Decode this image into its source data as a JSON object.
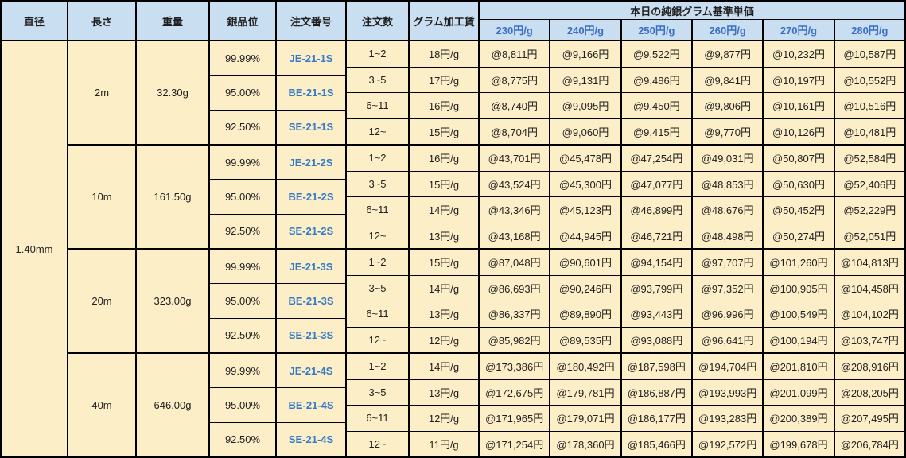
{
  "header": {
    "columns": [
      "直径",
      "長さ",
      "重量",
      "銀品位",
      "注文番号",
      "注文数",
      "グラム加工賃"
    ],
    "price_title": "本日の純銀グラム基準単価",
    "price_columns": [
      "230円/g",
      "240円/g",
      "250円/g",
      "260円/g",
      "270円/g",
      "280円/g"
    ]
  },
  "diameter": "1.40mm",
  "groups": [
    {
      "length": "2m",
      "weight": "32.30g",
      "purities": [
        {
          "purity": "99.99%",
          "order_no": "JE-21-1S"
        },
        {
          "purity": "95.00%",
          "order_no": "BE-21-1S"
        },
        {
          "purity": "92.50%",
          "order_no": "SE-21-1S"
        }
      ],
      "rows": [
        {
          "qty": "1~2",
          "fee": "18円/g",
          "prices": [
            "@8,811円",
            "@9,166円",
            "@9,522円",
            "@9,877円",
            "@10,232円",
            "@10,587円"
          ]
        },
        {
          "qty": "3~5",
          "fee": "17円/g",
          "prices": [
            "@8,775円",
            "@9,131円",
            "@9,486円",
            "@9,841円",
            "@10,197円",
            "@10,552円"
          ]
        },
        {
          "qty": "6~11",
          "fee": "16円/g",
          "prices": [
            "@8,740円",
            "@9,095円",
            "@9,450円",
            "@9,806円",
            "@10,161円",
            "@10,516円"
          ]
        },
        {
          "qty": "12~",
          "fee": "15円/g",
          "prices": [
            "@8,704円",
            "@9,060円",
            "@9,415円",
            "@9,770円",
            "@10,126円",
            "@10,481円"
          ]
        }
      ]
    },
    {
      "length": "10m",
      "weight": "161.50g",
      "purities": [
        {
          "purity": "99.99%",
          "order_no": "JE-21-2S"
        },
        {
          "purity": "95.00%",
          "order_no": "BE-21-2S"
        },
        {
          "purity": "92.50%",
          "order_no": "SE-21-2S"
        }
      ],
      "rows": [
        {
          "qty": "1~2",
          "fee": "16円/g",
          "prices": [
            "@43,701円",
            "@45,478円",
            "@47,254円",
            "@49,031円",
            "@50,807円",
            "@52,584円"
          ]
        },
        {
          "qty": "3~5",
          "fee": "15円/g",
          "prices": [
            "@43,524円",
            "@45,300円",
            "@47,077円",
            "@48,853円",
            "@50,630円",
            "@52,406円"
          ]
        },
        {
          "qty": "6~11",
          "fee": "14円/g",
          "prices": [
            "@43,346円",
            "@45,123円",
            "@46,899円",
            "@48,676円",
            "@50,452円",
            "@52,229円"
          ]
        },
        {
          "qty": "12~",
          "fee": "13円/g",
          "prices": [
            "@43,168円",
            "@44,945円",
            "@46,721円",
            "@48,498円",
            "@50,274円",
            "@52,051円"
          ]
        }
      ]
    },
    {
      "length": "20m",
      "weight": "323.00g",
      "purities": [
        {
          "purity": "99.99%",
          "order_no": "JE-21-3S"
        },
        {
          "purity": "95.00%",
          "order_no": "BE-21-3S"
        },
        {
          "purity": "92.50%",
          "order_no": "SE-21-3S"
        }
      ],
      "rows": [
        {
          "qty": "1~2",
          "fee": "15円/g",
          "prices": [
            "@87,048円",
            "@90,601円",
            "@94,154円",
            "@97,707円",
            "@101,260円",
            "@104,813円"
          ]
        },
        {
          "qty": "3~5",
          "fee": "14円/g",
          "prices": [
            "@86,693円",
            "@90,246円",
            "@93,799円",
            "@97,352円",
            "@100,905円",
            "@104,458円"
          ]
        },
        {
          "qty": "6~11",
          "fee": "13円/g",
          "prices": [
            "@86,337円",
            "@89,890円",
            "@93,443円",
            "@96,996円",
            "@100,549円",
            "@104,102円"
          ]
        },
        {
          "qty": "12~",
          "fee": "12円/g",
          "prices": [
            "@85,982円",
            "@89,535円",
            "@93,088円",
            "@96,641円",
            "@100,194円",
            "@103,747円"
          ]
        }
      ]
    },
    {
      "length": "40m",
      "weight": "646.00g",
      "purities": [
        {
          "purity": "99.99%",
          "order_no": "JE-21-4S"
        },
        {
          "purity": "95.00%",
          "order_no": "BE-21-4S"
        },
        {
          "purity": "92.50%",
          "order_no": "SE-21-4S"
        }
      ],
      "rows": [
        {
          "qty": "1~2",
          "fee": "14円/g",
          "prices": [
            "@173,386円",
            "@180,492円",
            "@187,598円",
            "@194,704円",
            "@201,810円",
            "@208,916円"
          ]
        },
        {
          "qty": "3~5",
          "fee": "13円/g",
          "prices": [
            "@172,675円",
            "@179,781円",
            "@186,887円",
            "@193,993円",
            "@201,099円",
            "@208,205円"
          ]
        },
        {
          "qty": "6~11",
          "fee": "12円/g",
          "prices": [
            "@171,965円",
            "@179,071円",
            "@186,177円",
            "@193,283円",
            "@200,389円",
            "@207,495円"
          ]
        },
        {
          "qty": "12~",
          "fee": "11円/g",
          "prices": [
            "@171,254円",
            "@178,360円",
            "@185,466円",
            "@192,572円",
            "@199,678円",
            "@206,784円"
          ]
        }
      ]
    }
  ],
  "colors": {
    "header_bg": "#C9DEF0",
    "body_bg": "#FCEFC8",
    "border": "#000000",
    "link_blue": "#3579C8",
    "price_head_blue": "#3B6FC4"
  }
}
